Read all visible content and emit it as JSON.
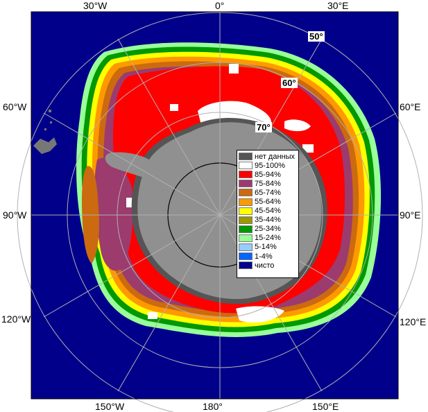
{
  "map": {
    "longitude_labels": {
      "top": [
        "30°W",
        "0°",
        "30°E"
      ],
      "bottom": [
        "150°W",
        "180°",
        "150°E"
      ],
      "left": [
        "60°W",
        "90°W",
        "120°W"
      ],
      "right": [
        "60°E",
        "90°E",
        "120°E"
      ]
    },
    "latitude_labels": [
      "50°",
      "60°",
      "70°"
    ],
    "colors": {
      "ocean": "#00008b",
      "land": "#909090",
      "no_data": "#555555",
      "grid": "#b0b0b0"
    }
  },
  "legend": {
    "items": [
      {
        "label": "нет данных",
        "color": "#555555"
      },
      {
        "label": "95-100%",
        "color": "#ffffff"
      },
      {
        "label": "85-94%",
        "color": "#ff0000"
      },
      {
        "label": "75-84%",
        "color": "#9c3b6e"
      },
      {
        "label": "65-74%",
        "color": "#cc6a10"
      },
      {
        "label": "55-64%",
        "color": "#ff9900"
      },
      {
        "label": "45-54%",
        "color": "#ffff00"
      },
      {
        "label": "35-44%",
        "color": "#999900"
      },
      {
        "label": "25-34%",
        "color": "#009900"
      },
      {
        "label": "15-24%",
        "color": "#99ff99"
      },
      {
        "label": "5-14%",
        "color": "#99ccff"
      },
      {
        "label": "1-4%",
        "color": "#0066ff"
      },
      {
        "label": "чисто",
        "color": "#00008b"
      }
    ]
  }
}
